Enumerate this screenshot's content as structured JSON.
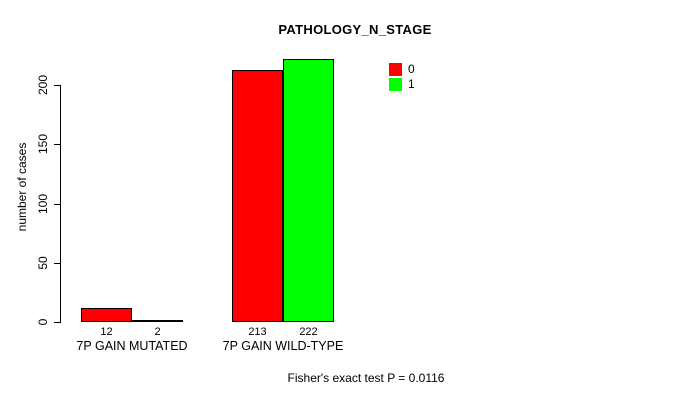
{
  "chart_data": {
    "type": "bar",
    "title": "PATHOLOGY_N_STAGE",
    "xlabel": "",
    "ylabel": "number of cases",
    "categories": [
      "7P GAIN MUTATED",
      "7P GAIN WILD-TYPE"
    ],
    "series": [
      {
        "name": "0",
        "color": "#FF0000",
        "values": [
          12,
          213
        ]
      },
      {
        "name": "1",
        "color": "#00FF00",
        "values": [
          2,
          222
        ]
      }
    ],
    "bar_value_labels": [
      [
        "12",
        "2"
      ],
      [
        "213",
        "222"
      ]
    ],
    "yticks": [
      0,
      50,
      100,
      150,
      200
    ],
    "ylim": [
      0,
      225
    ],
    "grid": false,
    "legend_position": "top-right",
    "annotation": "Fisher's exact test P = 0.0116"
  },
  "colors": {
    "background": "#FFFFFF",
    "axis": "#000000",
    "bar_border": "#000000",
    "series0": "#FF0000",
    "series1": "#00FF00"
  }
}
